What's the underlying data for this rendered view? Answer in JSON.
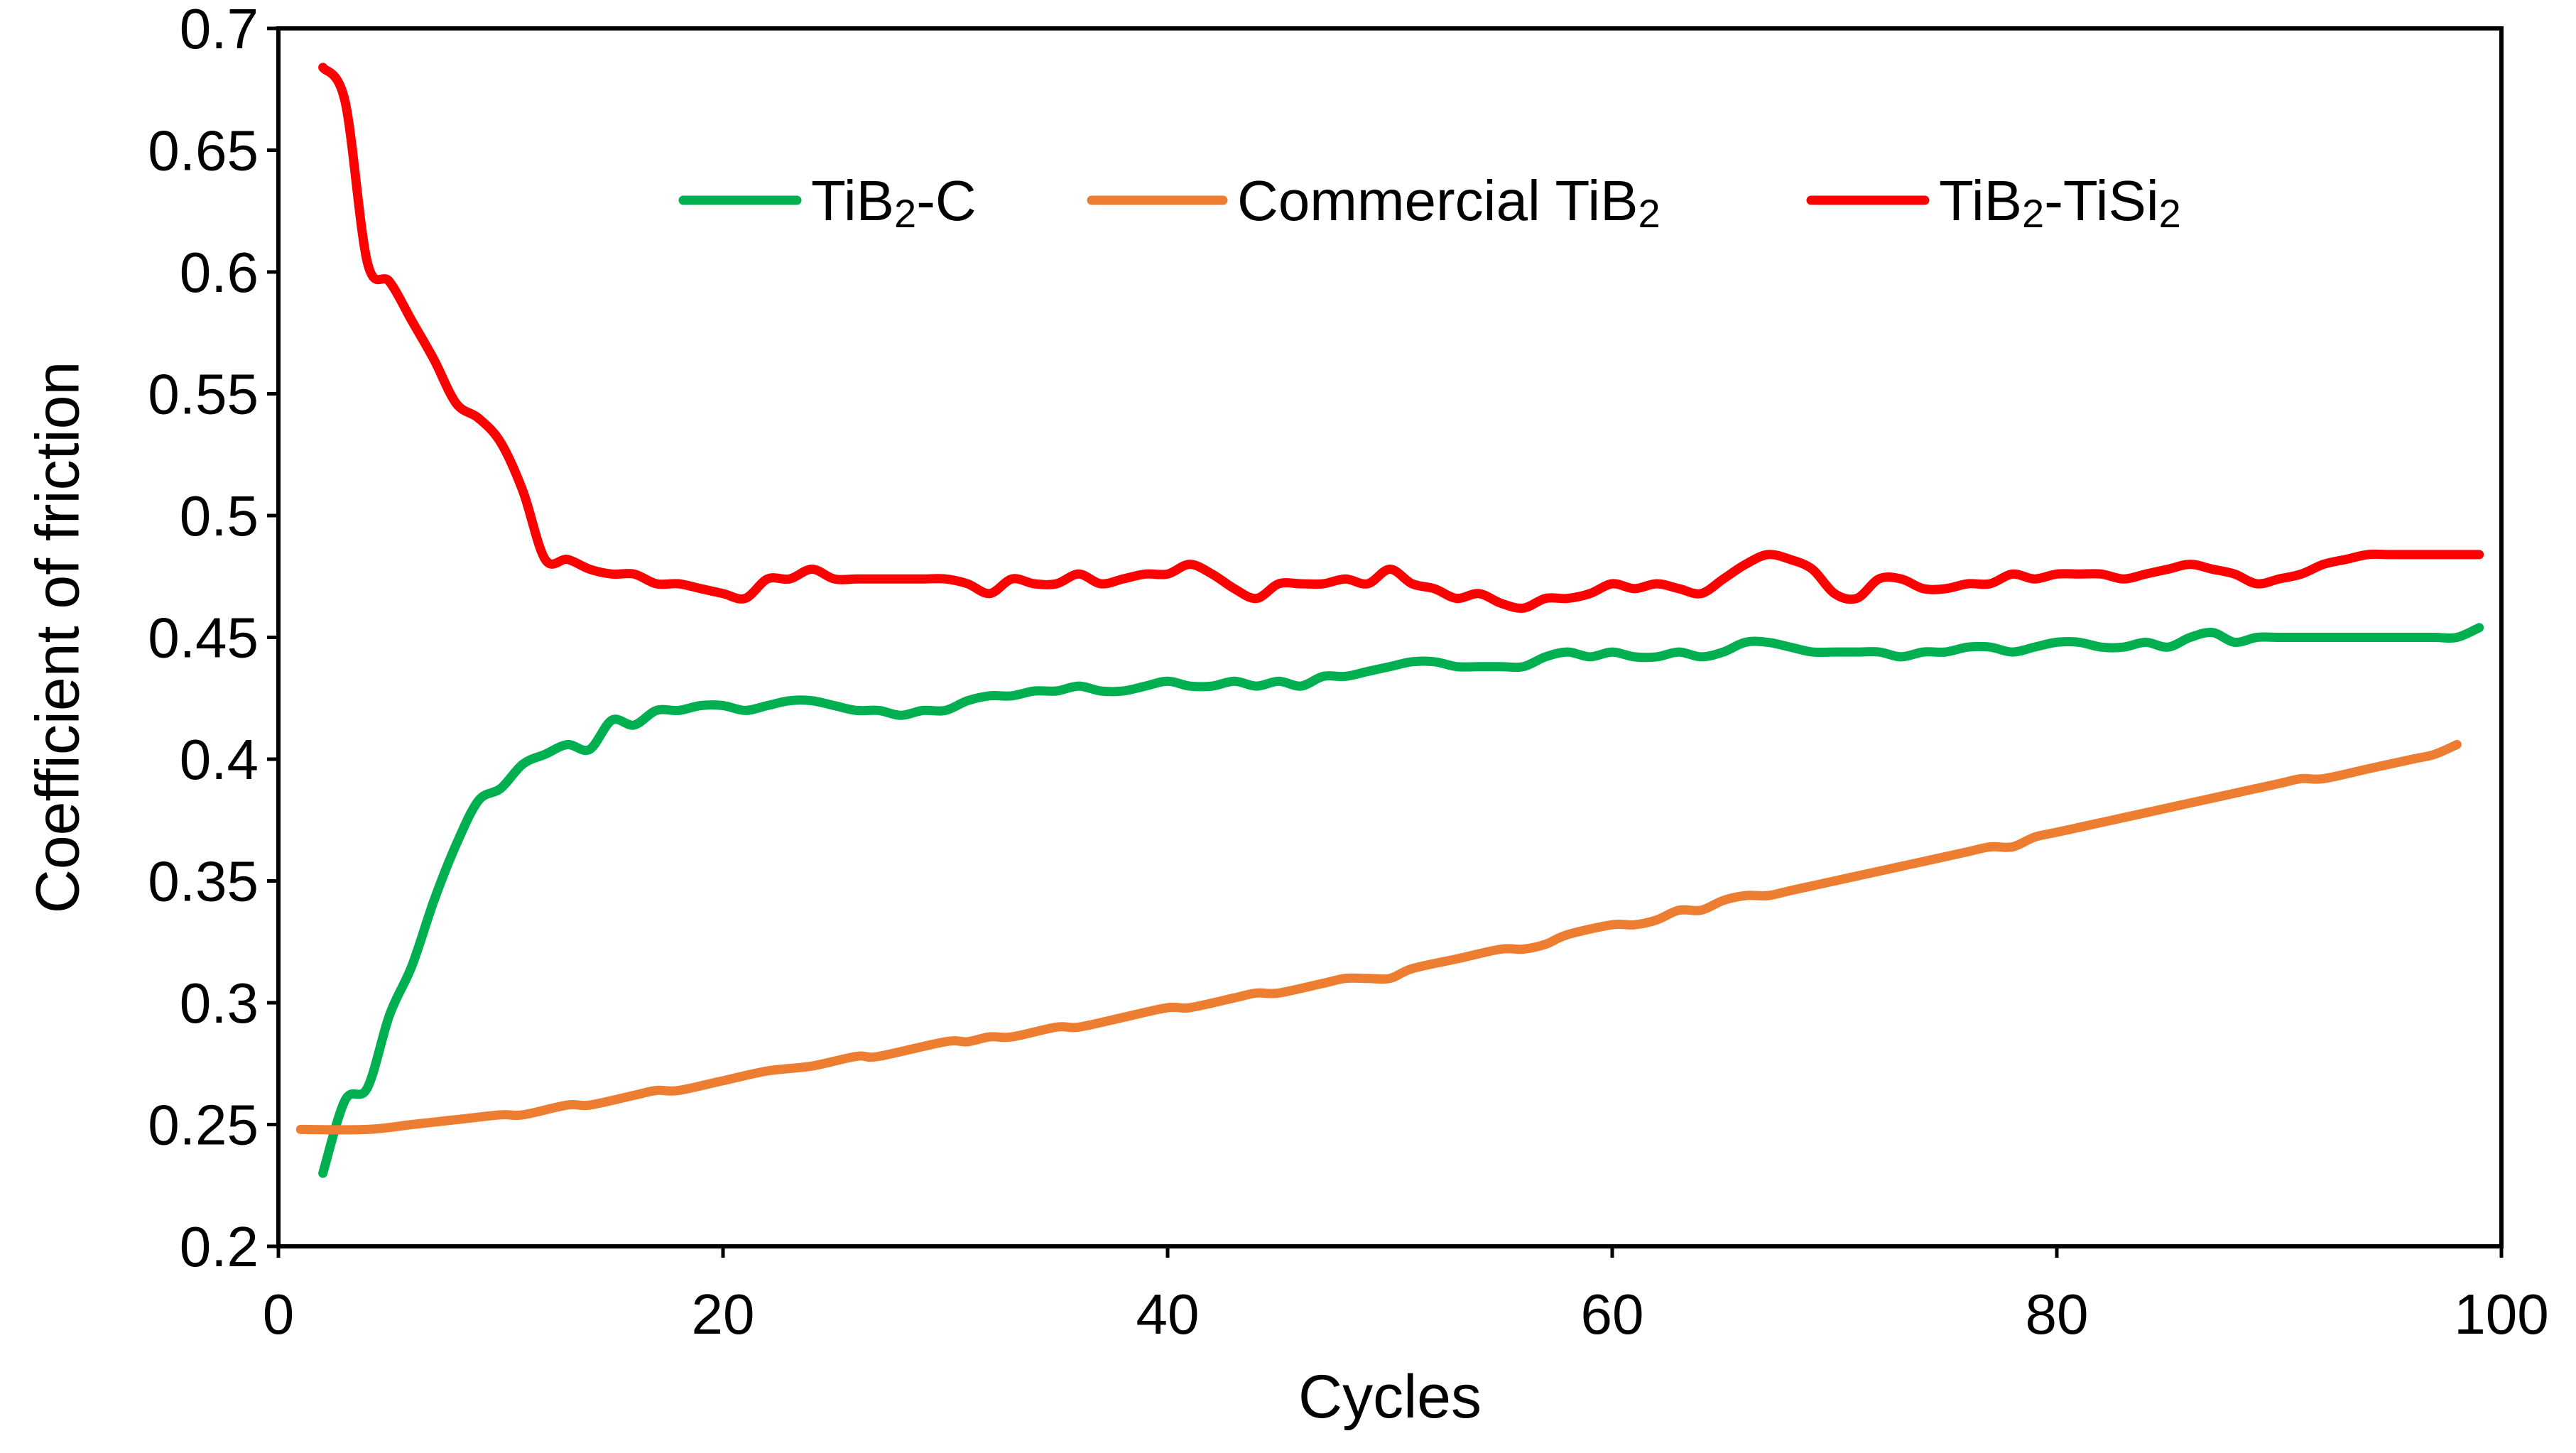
{
  "chart_data": {
    "type": "line",
    "title": "",
    "xlabel": "Cycles",
    "ylabel": "Coefficient of friction",
    "xlim": [
      0,
      100
    ],
    "ylim": [
      0.2,
      0.7
    ],
    "x_ticks": [
      0,
      20,
      40,
      60,
      80,
      100
    ],
    "y_ticks": [
      0.2,
      0.25,
      0.3,
      0.35,
      0.4,
      0.45,
      0.5,
      0.55,
      0.6,
      0.65,
      0.7
    ],
    "x_tick_labels": [
      "0",
      "20",
      "40",
      "60",
      "80",
      "100"
    ],
    "y_tick_labels": [
      "0.2",
      "0.25",
      "0.3",
      "0.35",
      "0.4",
      "0.45",
      "0.5",
      "0.55",
      "0.6",
      "0.65",
      "0.7"
    ],
    "grid": false,
    "legend_position": "top-center",
    "series": [
      {
        "name": "TiB2-C",
        "legend": {
          "base": "TiB",
          "sub": "2",
          "rest": "-C"
        },
        "color": "#00b050",
        "x": [
          2,
          3,
          4,
          5,
          6,
          7,
          8,
          9,
          10,
          11,
          12,
          13,
          14,
          15,
          16,
          17,
          18,
          19,
          20,
          21,
          22,
          23,
          24,
          25,
          26,
          27,
          28,
          29,
          30,
          31,
          32,
          33,
          34,
          35,
          36,
          37,
          38,
          39,
          40,
          41,
          42,
          43,
          44,
          45,
          46,
          47,
          48,
          49,
          50,
          51,
          52,
          53,
          54,
          55,
          56,
          57,
          58,
          59,
          60,
          61,
          62,
          63,
          64,
          65,
          66,
          67,
          68,
          69,
          70,
          71,
          72,
          73,
          74,
          75,
          76,
          77,
          78,
          79,
          80,
          81,
          82,
          83,
          84,
          85,
          86,
          87,
          88,
          89,
          90,
          91,
          92,
          93,
          94,
          95,
          96,
          97,
          98,
          99
        ],
        "y": [
          0.23,
          0.26,
          0.265,
          0.295,
          0.315,
          0.342,
          0.365,
          0.383,
          0.388,
          0.398,
          0.402,
          0.406,
          0.404,
          0.416,
          0.414,
          0.42,
          0.42,
          0.422,
          0.422,
          0.42,
          0.422,
          0.424,
          0.424,
          0.422,
          0.42,
          0.42,
          0.418,
          0.42,
          0.42,
          0.424,
          0.426,
          0.426,
          0.428,
          0.428,
          0.43,
          0.428,
          0.428,
          0.43,
          0.432,
          0.43,
          0.43,
          0.432,
          0.43,
          0.432,
          0.43,
          0.434,
          0.434,
          0.436,
          0.438,
          0.44,
          0.44,
          0.438,
          0.438,
          0.438,
          0.438,
          0.442,
          0.444,
          0.442,
          0.444,
          0.442,
          0.442,
          0.444,
          0.442,
          0.444,
          0.448,
          0.448,
          0.446,
          0.444,
          0.444,
          0.444,
          0.444,
          0.442,
          0.444,
          0.444,
          0.446,
          0.446,
          0.444,
          0.446,
          0.448,
          0.448,
          0.446,
          0.446,
          0.448,
          0.446,
          0.45,
          0.452,
          0.448,
          0.45,
          0.45,
          0.45,
          0.45,
          0.45,
          0.45,
          0.45,
          0.45,
          0.45,
          0.45,
          0.454
        ]
      },
      {
        "name": "Commercial TiB2",
        "legend": {
          "base": "Commercial TiB",
          "sub": "2",
          "rest": ""
        },
        "color": "#ed7d31",
        "x": [
          1,
          4,
          6,
          8,
          10,
          11,
          13,
          14,
          16,
          17,
          18,
          20,
          22,
          24,
          26,
          27,
          30,
          31,
          32,
          33,
          35,
          36,
          38,
          40,
          41,
          43,
          44,
          45,
          47,
          48,
          49,
          50,
          51,
          53,
          55,
          56,
          57,
          58,
          60,
          61,
          62,
          63,
          64,
          65,
          66,
          67,
          68,
          70,
          72,
          74,
          76,
          77,
          78,
          79,
          80,
          82,
          84,
          86,
          88,
          90,
          91,
          92,
          94,
          96,
          97,
          98
        ],
        "y": [
          0.248,
          0.248,
          0.25,
          0.252,
          0.254,
          0.254,
          0.258,
          0.258,
          0.262,
          0.264,
          0.264,
          0.268,
          0.272,
          0.274,
          0.278,
          0.278,
          0.284,
          0.284,
          0.286,
          0.286,
          0.29,
          0.29,
          0.294,
          0.298,
          0.298,
          0.302,
          0.304,
          0.304,
          0.308,
          0.31,
          0.31,
          0.31,
          0.314,
          0.318,
          0.322,
          0.322,
          0.324,
          0.328,
          0.332,
          0.332,
          0.334,
          0.338,
          0.338,
          0.342,
          0.344,
          0.344,
          0.346,
          0.35,
          0.354,
          0.358,
          0.362,
          0.364,
          0.364,
          0.368,
          0.37,
          0.374,
          0.378,
          0.382,
          0.386,
          0.39,
          0.392,
          0.392,
          0.396,
          0.4,
          0.402,
          0.406
        ]
      },
      {
        "name": "TiB2-TiSi2",
        "legend": {
          "base": "TiB",
          "sub": "2",
          "rest": "-TiSi",
          "sub2": "2"
        },
        "color": "#ff0000",
        "x": [
          2,
          3,
          4,
          5,
          6,
          7,
          8,
          9,
          10,
          11,
          12,
          13,
          14,
          15,
          16,
          17,
          18,
          19,
          20,
          21,
          22,
          23,
          24,
          25,
          26,
          27,
          28,
          29,
          30,
          31,
          32,
          33,
          34,
          35,
          36,
          37,
          38,
          39,
          40,
          41,
          42,
          43,
          44,
          45,
          46,
          47,
          48,
          49,
          50,
          51,
          52,
          53,
          54,
          55,
          56,
          57,
          58,
          59,
          60,
          61,
          62,
          63,
          64,
          65,
          66,
          67,
          68,
          69,
          70,
          71,
          72,
          73,
          74,
          75,
          76,
          77,
          78,
          79,
          80,
          81,
          82,
          83,
          84,
          85,
          86,
          87,
          88,
          89,
          90,
          91,
          92,
          93,
          94,
          95,
          96,
          97,
          98,
          99
        ],
        "y": [
          0.684,
          0.67,
          0.604,
          0.596,
          0.58,
          0.564,
          0.546,
          0.54,
          0.53,
          0.51,
          0.482,
          0.482,
          0.478,
          0.476,
          0.476,
          0.472,
          0.472,
          0.47,
          0.468,
          0.466,
          0.474,
          0.474,
          0.478,
          0.474,
          0.474,
          0.474,
          0.474,
          0.474,
          0.474,
          0.472,
          0.468,
          0.474,
          0.472,
          0.472,
          0.476,
          0.472,
          0.474,
          0.476,
          0.476,
          0.48,
          0.476,
          0.47,
          0.466,
          0.472,
          0.472,
          0.472,
          0.474,
          0.472,
          0.478,
          0.472,
          0.47,
          0.466,
          0.468,
          0.464,
          0.462,
          0.466,
          0.466,
          0.468,
          0.472,
          0.47,
          0.472,
          0.47,
          0.468,
          0.474,
          0.48,
          0.484,
          0.482,
          0.478,
          0.468,
          0.466,
          0.474,
          0.474,
          0.47,
          0.47,
          0.472,
          0.472,
          0.476,
          0.474,
          0.476,
          0.476,
          0.476,
          0.474,
          0.476,
          0.478,
          0.48,
          0.478,
          0.476,
          0.472,
          0.474,
          0.476,
          0.48,
          0.482,
          0.484,
          0.484,
          0.484,
          0.484,
          0.484,
          0.484
        ]
      }
    ]
  }
}
